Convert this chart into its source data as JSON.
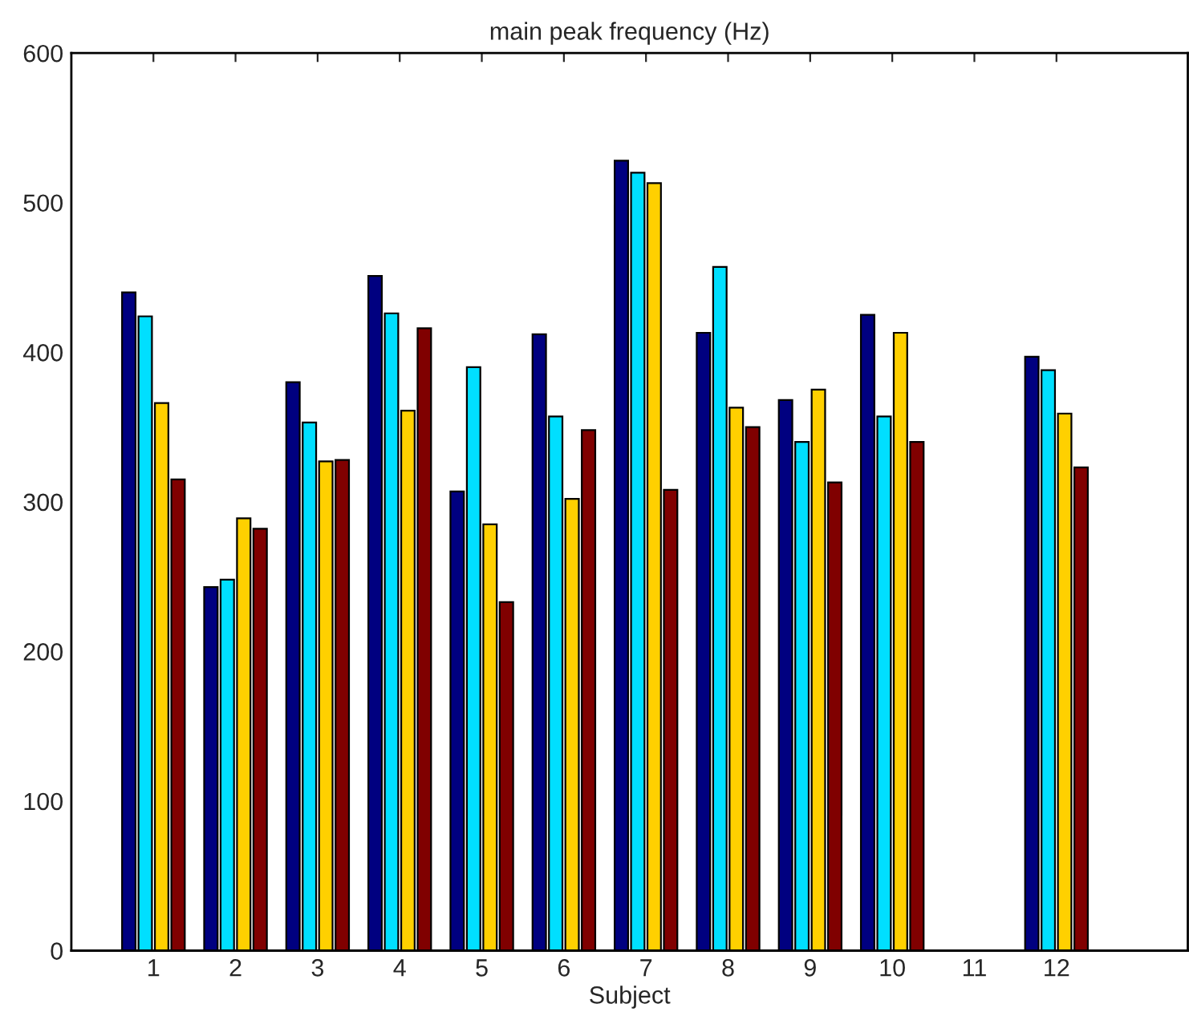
{
  "chart_data": {
    "type": "bar",
    "title": "main peak frequency (Hz)",
    "xlabel": "Subject",
    "categories": [
      "1",
      "2",
      "3",
      "4",
      "5",
      "6",
      "7",
      "8",
      "9",
      "10",
      "11",
      "12"
    ],
    "series": [
      {
        "color": "#000080",
        "values": [
          440,
          243,
          380,
          451,
          307,
          412,
          528,
          413,
          368,
          425,
          0,
          397
        ]
      },
      {
        "color": "#00dfff",
        "values": [
          424,
          248,
          353,
          426,
          390,
          357,
          520,
          457,
          340,
          357,
          0,
          388
        ]
      },
      {
        "color": "#ffd000",
        "values": [
          366,
          289,
          327,
          361,
          285,
          302,
          513,
          363,
          375,
          413,
          0,
          359
        ]
      },
      {
        "color": "#800000",
        "values": [
          315,
          282,
          328,
          416,
          233,
          348,
          308,
          350,
          313,
          340,
          0,
          323
        ]
      }
    ],
    "ylim": [
      0,
      600
    ],
    "yticks": [
      0,
      100,
      200,
      300,
      400,
      500,
      600
    ],
    "grid": false
  }
}
